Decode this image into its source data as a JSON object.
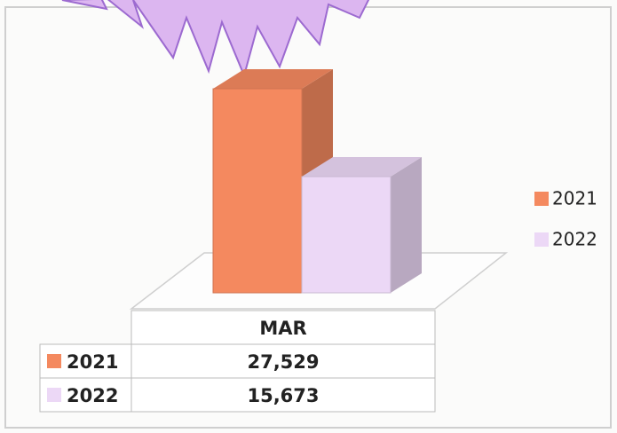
{
  "chart_data": {
    "type": "bar",
    "categories": [
      "MAR"
    ],
    "series": [
      {
        "name": "2021",
        "color": "#f4895f",
        "values": [
          27529
        ],
        "value_labels": [
          "27,529"
        ]
      },
      {
        "name": "2022",
        "color": "#ecd8f6",
        "values": [
          15673
        ],
        "value_labels": [
          "15,673"
        ]
      }
    ],
    "legend": "right"
  }
}
